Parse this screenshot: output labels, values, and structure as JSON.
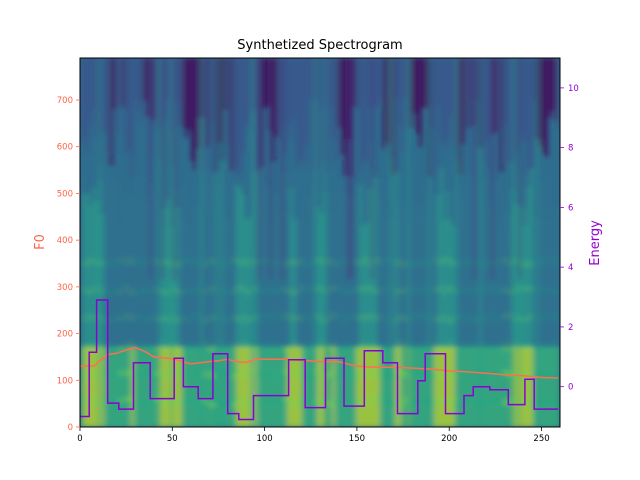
{
  "chart_data": {
    "type": "line",
    "title": "Synthetized Spectrogram",
    "xlabel": "",
    "ylabel_left": "F0",
    "ylabel_right": "Energy",
    "xlim": [
      0,
      260
    ],
    "ylim_left": [
      0,
      790
    ],
    "ylim_right": [
      -1.35,
      11.0
    ],
    "x_ticks": [
      0,
      50,
      100,
      150,
      200,
      250
    ],
    "y_left_ticks": [
      0,
      100,
      200,
      300,
      400,
      500,
      600,
      700
    ],
    "y_right_ticks": [
      0,
      2,
      4,
      6,
      8,
      10
    ],
    "colors": {
      "f0": "#ff6f4e",
      "energy": "#8b00d6",
      "left_axis": "#ff6347",
      "right_axis": "#9400d3"
    },
    "background": "spectrogram (viridis)",
    "grid": false,
    "series": [
      {
        "axis": "left",
        "color": "#ff6f4e",
        "x": [
          0,
          8,
          10,
          15,
          20,
          25,
          30,
          35,
          40,
          50,
          60,
          70,
          75,
          80,
          85,
          90,
          95,
          100,
          110,
          120,
          130,
          140,
          150,
          160,
          170,
          180,
          190,
          200,
          210,
          220,
          230,
          240,
          250,
          259
        ],
        "values": [
          130,
          131,
          140,
          155,
          158,
          165,
          170,
          162,
          150,
          146,
          135,
          140,
          142,
          145,
          140,
          138,
          145,
          145,
          145,
          143,
          140,
          140,
          130,
          128,
          128,
          126,
          124,
          120,
          118,
          115,
          112,
          110,
          106,
          105
        ]
      },
      {
        "axis": "right",
        "color": "#8b00d6",
        "step": true,
        "x": [
          0,
          5,
          9,
          15,
          21,
          29,
          38,
          51,
          56,
          64,
          72,
          80,
          86,
          94,
          113,
          122,
          133,
          143,
          154,
          164,
          172,
          183,
          187,
          198,
          208,
          213,
          222,
          232,
          241,
          246,
          259
        ],
        "values": [
          -1.0,
          1.15,
          2.9,
          -0.55,
          -0.75,
          0.8,
          -0.4,
          0.95,
          0.0,
          -0.4,
          1.1,
          -0.9,
          -1.1,
          -0.3,
          0.9,
          -0.7,
          0.95,
          -0.65,
          1.2,
          0.8,
          -0.9,
          0.2,
          1.1,
          -0.9,
          -0.3,
          0.0,
          -0.1,
          -0.6,
          0.25,
          -0.75,
          -0.75
        ]
      }
    ]
  }
}
